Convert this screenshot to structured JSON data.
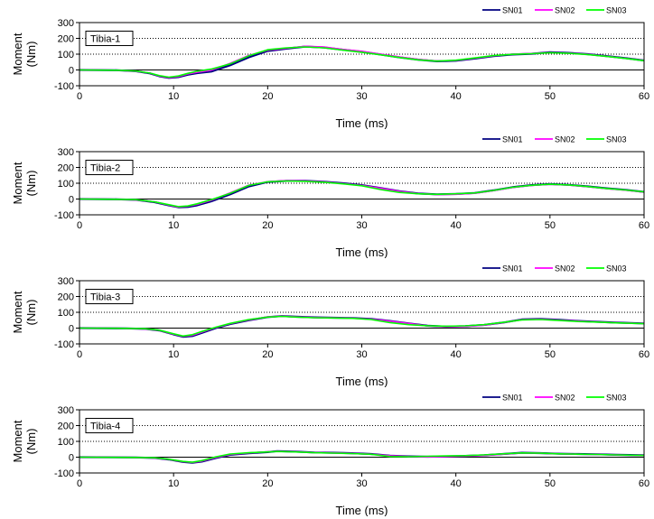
{
  "chart_data": [
    {
      "type": "line",
      "label": "Tibia-1",
      "xlabel": "Time (ms)",
      "ylabel": "Moment (Nm)",
      "xlim": [
        0,
        60
      ],
      "ylim": [
        -100,
        300
      ],
      "xticks": [
        0,
        10,
        20,
        30,
        40,
        50,
        60
      ],
      "yticks": [
        -100,
        0,
        100,
        200,
        300
      ],
      "dotted_grid_y": [
        100,
        200
      ],
      "legend_position": "top-right",
      "series": [
        {
          "name": "SN01",
          "color": "#000080",
          "x": [
            0,
            4,
            6,
            7.5,
            8.5,
            9.5,
            10.5,
            11.5,
            12.5,
            14,
            16,
            18,
            20,
            22,
            24,
            26,
            28,
            30,
            32,
            34,
            36,
            38,
            40,
            42,
            44,
            46,
            48,
            50,
            52,
            54,
            56,
            58,
            60
          ],
          "y": [
            0,
            -2,
            -8,
            -22,
            -40,
            -50,
            -45,
            -30,
            -20,
            -10,
            30,
            80,
            120,
            135,
            148,
            142,
            128,
            115,
            98,
            80,
            65,
            55,
            58,
            72,
            88,
            98,
            102,
            112,
            108,
            100,
            88,
            75,
            60
          ]
        },
        {
          "name": "SN02",
          "color": "#ff00ff",
          "x": [
            0,
            4,
            6,
            7.5,
            8.5,
            9.5,
            10.5,
            11.5,
            12.5,
            14,
            16,
            18,
            20,
            22,
            24,
            26,
            28,
            30,
            32,
            34,
            36,
            38,
            40,
            42,
            44,
            46,
            48,
            50,
            52,
            54,
            56,
            58,
            60
          ],
          "y": [
            0,
            -2,
            -8,
            -20,
            -38,
            -48,
            -42,
            -26,
            -15,
            -2,
            42,
            92,
            125,
            138,
            150,
            145,
            130,
            118,
            100,
            82,
            67,
            57,
            60,
            74,
            90,
            100,
            104,
            110,
            106,
            99,
            87,
            74,
            60
          ]
        },
        {
          "name": "SN03",
          "color": "#00ff00",
          "x": [
            0,
            4,
            6,
            7.5,
            8.5,
            9.5,
            10.5,
            11.5,
            12.5,
            14,
            16,
            18,
            20,
            22,
            24,
            26,
            28,
            30,
            32,
            34,
            36,
            38,
            40,
            42,
            44,
            46,
            48,
            50,
            52,
            54,
            56,
            58,
            60
          ],
          "y": [
            0,
            -2,
            -7,
            -20,
            -36,
            -46,
            -38,
            -22,
            -8,
            5,
            38,
            90,
            128,
            140,
            146,
            140,
            126,
            112,
            96,
            79,
            64,
            56,
            62,
            76,
            91,
            99,
            103,
            109,
            105,
            98,
            86,
            73,
            59
          ]
        }
      ]
    },
    {
      "type": "line",
      "label": "Tibia-2",
      "xlabel": "Time (ms)",
      "ylabel": "Moment (Nm)",
      "xlim": [
        0,
        60
      ],
      "ylim": [
        -100,
        300
      ],
      "xticks": [
        0,
        10,
        20,
        30,
        40,
        50,
        60
      ],
      "yticks": [
        -100,
        0,
        100,
        200,
        300
      ],
      "dotted_grid_y": [
        100,
        200
      ],
      "legend_position": "top-right",
      "series": [
        {
          "name": "SN01",
          "color": "#000080",
          "x": [
            0,
            4,
            6,
            8,
            9.5,
            10.5,
            11.5,
            12.5,
            14,
            16,
            18,
            20,
            22,
            24,
            26,
            28,
            30,
            32,
            34,
            36,
            38,
            40,
            42,
            44,
            46,
            48,
            50,
            52,
            54,
            56,
            58,
            60
          ],
          "y": [
            0,
            -2,
            -5,
            -20,
            -40,
            -52,
            -50,
            -40,
            -15,
            30,
            80,
            108,
            115,
            115,
            110,
            100,
            88,
            70,
            50,
            35,
            30,
            32,
            38,
            55,
            75,
            88,
            95,
            90,
            80,
            68,
            58,
            45
          ]
        },
        {
          "name": "SN02",
          "color": "#ff00ff",
          "x": [
            0,
            4,
            6,
            8,
            9.5,
            10.5,
            11.5,
            12.5,
            14,
            16,
            18,
            20,
            22,
            24,
            26,
            28,
            30,
            32,
            34,
            36,
            38,
            40,
            42,
            44,
            46,
            48,
            50,
            52,
            54,
            56,
            58,
            60
          ],
          "y": [
            0,
            -2,
            -5,
            -18,
            -38,
            -50,
            -46,
            -34,
            -8,
            38,
            88,
            110,
            116,
            114,
            108,
            98,
            86,
            68,
            48,
            34,
            28,
            30,
            36,
            53,
            73,
            86,
            93,
            88,
            78,
            66,
            56,
            44
          ]
        },
        {
          "name": "SN03",
          "color": "#00ff00",
          "x": [
            0,
            4,
            6,
            8,
            9.5,
            10.5,
            11.5,
            12.5,
            14,
            16,
            18,
            20,
            22,
            24,
            26,
            28,
            30,
            32,
            34,
            36,
            38,
            40,
            42,
            44,
            46,
            48,
            50,
            52,
            54,
            56,
            58,
            60
          ],
          "y": [
            0,
            -2,
            -4,
            -18,
            -36,
            -48,
            -44,
            -30,
            -4,
            36,
            86,
            109,
            114,
            112,
            106,
            96,
            84,
            60,
            42,
            33,
            30,
            33,
            38,
            54,
            74,
            87,
            94,
            89,
            79,
            67,
            57,
            45
          ]
        }
      ]
    },
    {
      "type": "line",
      "label": "Tibia-3",
      "xlabel": "Time (ms)",
      "ylabel": "Moment (Nm)",
      "xlim": [
        0,
        60
      ],
      "ylim": [
        -100,
        300
      ],
      "xticks": [
        0,
        10,
        20,
        30,
        40,
        50,
        60
      ],
      "yticks": [
        -100,
        0,
        100,
        200,
        300
      ],
      "dotted_grid_y": [
        100,
        200
      ],
      "legend_position": "top-right",
      "series": [
        {
          "name": "SN01",
          "color": "#000080",
          "x": [
            0,
            5,
            7,
            8.5,
            10,
            11,
            12,
            13,
            14.5,
            16,
            18,
            20,
            21.5,
            23,
            25,
            27,
            29,
            31,
            33,
            35,
            37,
            39,
            41,
            43,
            45,
            47,
            49,
            51,
            53,
            55,
            57,
            60
          ],
          "y": [
            0,
            -2,
            -5,
            -15,
            -40,
            -55,
            -50,
            -30,
            0,
            25,
            50,
            70,
            76,
            72,
            68,
            66,
            64,
            58,
            45,
            30,
            15,
            10,
            12,
            20,
            35,
            55,
            58,
            52,
            45,
            40,
            35,
            30
          ]
        },
        {
          "name": "SN02",
          "color": "#ff00ff",
          "x": [
            0,
            5,
            7,
            8.5,
            10,
            11,
            12,
            13,
            14.5,
            16,
            18,
            20,
            21.5,
            23,
            25,
            27,
            29,
            31,
            33,
            35,
            37,
            39,
            41,
            43,
            45,
            47,
            49,
            51,
            53,
            55,
            57,
            60
          ],
          "y": [
            0,
            -2,
            -5,
            -14,
            -38,
            -52,
            -46,
            -26,
            4,
            28,
            52,
            71,
            75,
            71,
            67,
            65,
            63,
            56,
            44,
            29,
            14,
            9,
            11,
            19,
            34,
            53,
            56,
            50,
            44,
            39,
            34,
            29
          ]
        },
        {
          "name": "SN03",
          "color": "#00ff00",
          "x": [
            0,
            5,
            7,
            8.5,
            10,
            11,
            12,
            13,
            14.5,
            16,
            18,
            20,
            21.5,
            23,
            25,
            27,
            29,
            31,
            33,
            35,
            37,
            39,
            41,
            43,
            45,
            47,
            49,
            51,
            53,
            55,
            57,
            60
          ],
          "y": [
            0,
            -2,
            -4,
            -13,
            -36,
            -50,
            -42,
            -22,
            6,
            30,
            54,
            70,
            74,
            70,
            66,
            64,
            62,
            54,
            35,
            22,
            15,
            12,
            14,
            22,
            36,
            52,
            54,
            48,
            42,
            38,
            33,
            28
          ]
        }
      ]
    },
    {
      "type": "line",
      "label": "Tibia-4",
      "xlabel": "Time (ms)",
      "ylabel": "Moment (Nm)",
      "xlim": [
        0,
        60
      ],
      "ylim": [
        -100,
        300
      ],
      "xticks": [
        0,
        10,
        20,
        30,
        40,
        50,
        60
      ],
      "yticks": [
        -100,
        0,
        100,
        200,
        300
      ],
      "dotted_grid_y": [
        100,
        200
      ],
      "legend_position": "top-right",
      "series": [
        {
          "name": "SN01",
          "color": "#000080",
          "x": [
            0,
            6,
            8,
            9.5,
            11,
            12,
            13,
            14.5,
            16,
            18,
            20,
            21,
            23,
            25,
            27,
            29,
            31,
            33,
            35,
            37,
            39,
            41,
            43,
            45,
            47,
            49,
            51,
            53,
            55,
            57,
            60
          ],
          "y": [
            0,
            -2,
            -5,
            -15,
            -30,
            -35,
            -28,
            -5,
            15,
            25,
            32,
            38,
            35,
            30,
            28,
            25,
            20,
            10,
            5,
            3,
            5,
            8,
            12,
            20,
            28,
            26,
            22,
            20,
            18,
            15,
            12
          ]
        },
        {
          "name": "SN02",
          "color": "#ff00ff",
          "x": [
            0,
            6,
            8,
            9.5,
            11,
            12,
            13,
            14.5,
            16,
            18,
            20,
            21,
            23,
            25,
            27,
            29,
            31,
            33,
            35,
            37,
            39,
            41,
            43,
            45,
            47,
            49,
            51,
            53,
            55,
            57,
            60
          ],
          "y": [
            0,
            -2,
            -5,
            -14,
            -28,
            -33,
            -25,
            -2,
            17,
            27,
            34,
            37,
            34,
            29,
            27,
            24,
            19,
            9,
            4,
            2,
            4,
            7,
            11,
            19,
            27,
            25,
            21,
            19,
            17,
            14,
            11
          ]
        },
        {
          "name": "SN03",
          "color": "#00ff00",
          "x": [
            0,
            6,
            8,
            9.5,
            11,
            12,
            13,
            14.5,
            16,
            18,
            20,
            21,
            23,
            25,
            27,
            29,
            31,
            33,
            35,
            37,
            39,
            41,
            43,
            45,
            47,
            49,
            51,
            53,
            55,
            57,
            60
          ],
          "y": [
            0,
            -2,
            -4,
            -13,
            -27,
            -32,
            -22,
            2,
            20,
            28,
            33,
            36,
            33,
            28,
            26,
            23,
            18,
            4,
            3,
            6,
            8,
            10,
            14,
            21,
            27,
            25,
            21,
            19,
            17,
            14,
            11
          ]
        }
      ]
    }
  ]
}
